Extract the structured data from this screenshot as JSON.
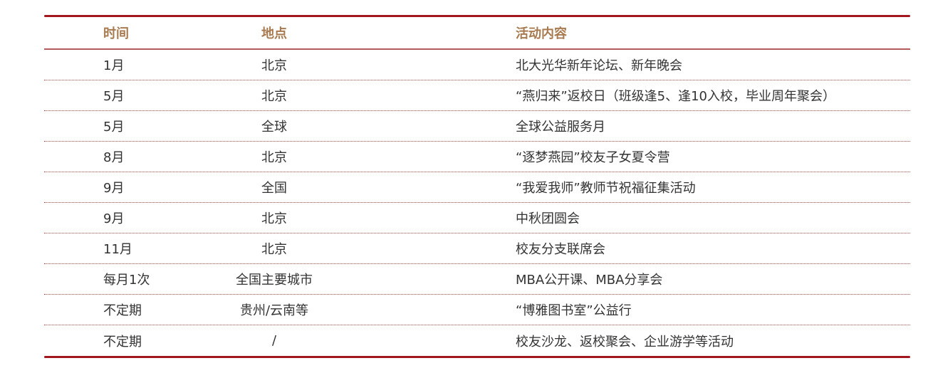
{
  "headers": {
    "time": "时间",
    "place": "地点",
    "content": "活动内容"
  },
  "rows": [
    {
      "time": "1月",
      "place": "北京",
      "content": "北大光华新年论坛、新年晚会"
    },
    {
      "time": "5月",
      "place": "北京",
      "content": "“燕归来”返校日（班级逢5、逢10入校，毕业周年聚会）"
    },
    {
      "time": "5月",
      "place": "全球",
      "content": "全球公益服务月"
    },
    {
      "time": "8月",
      "place": "北京",
      "content": "“逐梦燕园”校友子女夏令营"
    },
    {
      "time": "9月",
      "place": "全国",
      "content": "“我爱我师”教师节祝福征集活动"
    },
    {
      "time": "9月",
      "place": "北京",
      "content": "中秋团圆会"
    },
    {
      "time": "11月",
      "place": "北京",
      "content": "校友分支联席会"
    },
    {
      "time": "每月1次",
      "place": "全国主要城市",
      "content": "MBA公开课、MBA分享会"
    },
    {
      "time": "不定期",
      "place": "贵州/云南等",
      "content": "“博雅图书室”公益行"
    },
    {
      "time": "不定期",
      "place": "/",
      "content": "校友沙龙、返校聚会、企业游学等活动"
    }
  ],
  "colors": {
    "rule": "#a3161d",
    "header_text": "#a87a4f"
  }
}
